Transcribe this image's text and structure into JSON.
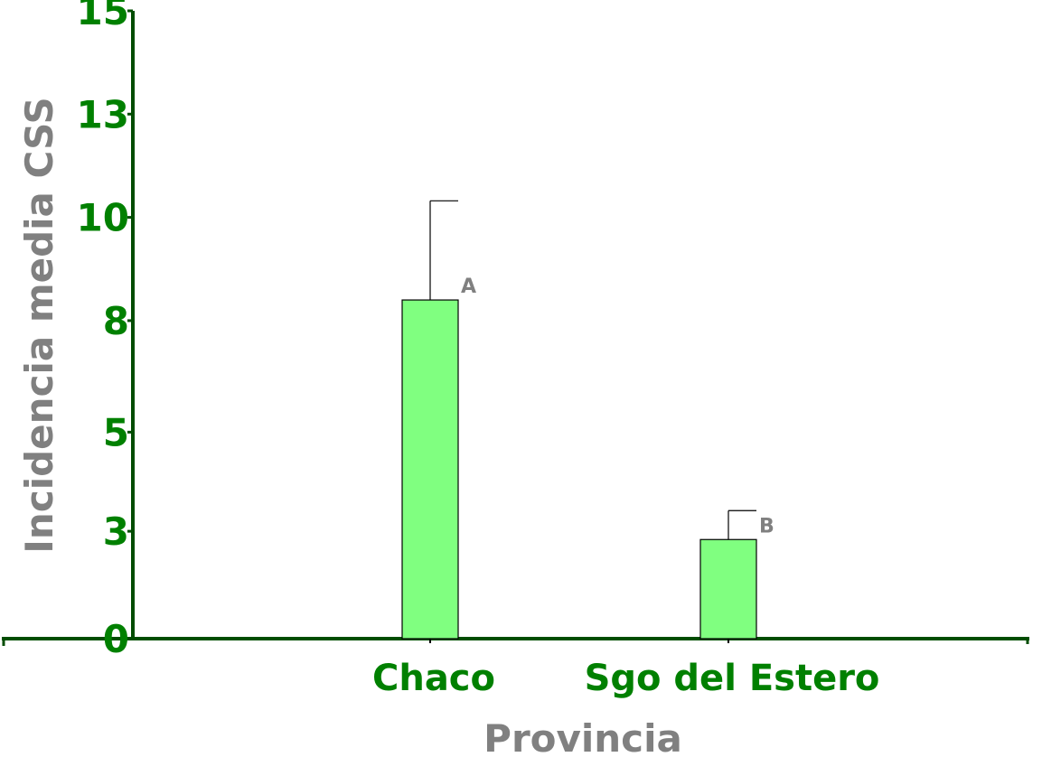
{
  "chart_data": {
    "type": "bar",
    "categories": [
      "Chaco",
      "Sgo del Estero"
    ],
    "values": [
      8.2,
      2.4
    ],
    "error_upper": [
      10.6,
      3.1
    ],
    "annotations": [
      "A",
      "B"
    ],
    "y_tick_labels": [
      "0",
      "3",
      "5",
      "8",
      "10",
      "13",
      "15"
    ],
    "y_tick_values": [
      0,
      2.6,
      5.0,
      7.7,
      10.2,
      12.7,
      15.2
    ],
    "xlabel": "Provincia",
    "ylabel": "Incidencia media CSS",
    "ylim": [
      0,
      15.2
    ],
    "grid": false,
    "legend": "none",
    "colors": {
      "bar_fill": "#80ff80",
      "tick_text": "#008000",
      "axis_title": "#808080",
      "annotation": "#808080",
      "axis_line": "#004d00"
    }
  }
}
